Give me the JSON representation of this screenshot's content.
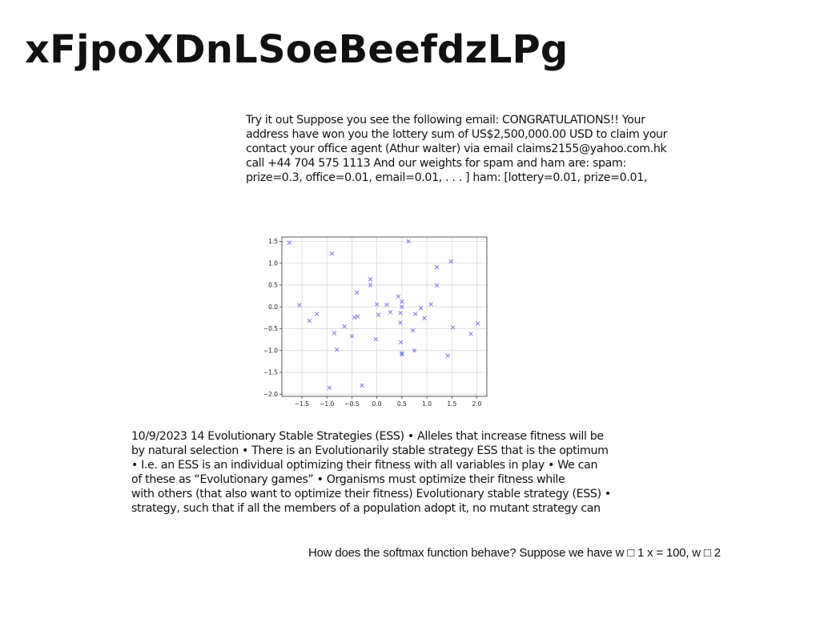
{
  "title": "xFjpoXDnLSoeBeefdzLPg",
  "spam_paragraph": {
    "lines": [
      "Try it out Suppose you see the following email: CONGRATULATIONS!! Your",
      "address have won you the lottery sum of US$2,500,000.00 USD to claim your",
      "contact your office agent (Athur walter) via email claims2155@yahoo.com.hk",
      "call +44 704 575 1113 And our weights for spam and ham are: spam:",
      "prize=0.3, office=0.01, email=0.01, . . . ] ham: [lottery=0.01, prize=0.01,"
    ]
  },
  "ess_paragraph": {
    "lines": [
      "10/9/2023 14 Evolutionary Stable Strategies (ESS) • Alleles that increase fitness will be",
      "by natural selection • There is an Evolutionarily stable strategy ESS that is the optimum",
      "• I.e. an ESS is an individual optimizing their fitness with all variables in play • We can",
      "of these as “Evolutionary games” • Organisms must optimize their fitness while",
      "with others (that also want to optimize their fitness) Evolutionary stable strategy (ESS) •",
      "strategy, such that if all the members of a population adopt it, no mutant strategy can"
    ]
  },
  "softmax_line": "How does the softmax function behave? Suppose we have w □ 1 x = 100, w □ 2",
  "chart_data": {
    "type": "scatter",
    "marker": "x",
    "color": "#7b7bdc",
    "grid": true,
    "xlim": [
      -1.9,
      2.2
    ],
    "ylim": [
      -2.05,
      1.6
    ],
    "xticks": [
      "−1.5",
      "−1.0",
      "−0.5",
      "0.0",
      "0.5",
      "1.0",
      "1.5",
      "2.0"
    ],
    "xtick_values": [
      -1.5,
      -1.0,
      -0.5,
      0.0,
      0.5,
      1.0,
      1.5,
      2.0
    ],
    "yticks": [
      "1.5",
      "1.0",
      "0.5",
      "0.0",
      "−0.5",
      "−1.0",
      "−1.5",
      "−2.0"
    ],
    "ytick_values": [
      1.5,
      1.0,
      0.5,
      0.0,
      -0.5,
      -1.0,
      -1.5,
      -2.0
    ],
    "points": [
      {
        "x": -1.75,
        "y": 1.47
      },
      {
        "x": -1.55,
        "y": 0.04
      },
      {
        "x": -1.35,
        "y": -0.32
      },
      {
        "x": -1.2,
        "y": -0.16
      },
      {
        "x": -0.95,
        "y": -1.85
      },
      {
        "x": -0.9,
        "y": 1.22
      },
      {
        "x": -0.85,
        "y": -0.6
      },
      {
        "x": -0.8,
        "y": -0.98
      },
      {
        "x": -0.65,
        "y": -0.45
      },
      {
        "x": -0.5,
        "y": -0.67
      },
      {
        "x": -0.45,
        "y": -0.24
      },
      {
        "x": -0.4,
        "y": 0.33
      },
      {
        "x": -0.38,
        "y": -0.22
      },
      {
        "x": -0.3,
        "y": -1.8
      },
      {
        "x": -0.13,
        "y": 0.63
      },
      {
        "x": -0.13,
        "y": 0.5
      },
      {
        "x": 0.0,
        "y": 0.06
      },
      {
        "x": -0.02,
        "y": -0.74
      },
      {
        "x": 0.03,
        "y": -0.18
      },
      {
        "x": 0.2,
        "y": 0.05
      },
      {
        "x": 0.27,
        "y": -0.12
      },
      {
        "x": 0.43,
        "y": 0.24
      },
      {
        "x": 0.47,
        "y": -0.36
      },
      {
        "x": 0.47,
        "y": -0.14
      },
      {
        "x": 0.5,
        "y": 0.12
      },
      {
        "x": 0.5,
        "y": 0.0
      },
      {
        "x": 0.48,
        "y": -0.81
      },
      {
        "x": 0.5,
        "y": -1.06
      },
      {
        "x": 0.5,
        "y": -1.09
      },
      {
        "x": 0.63,
        "y": 1.5
      },
      {
        "x": 0.72,
        "y": -0.54
      },
      {
        "x": 0.77,
        "y": -0.16
      },
      {
        "x": 0.75,
        "y": -1.0
      },
      {
        "x": 0.88,
        "y": -0.03
      },
      {
        "x": 0.95,
        "y": -0.26
      },
      {
        "x": 1.08,
        "y": 0.06
      },
      {
        "x": 1.2,
        "y": 0.91
      },
      {
        "x": 1.2,
        "y": 0.49
      },
      {
        "x": 1.42,
        "y": -1.12
      },
      {
        "x": 1.48,
        "y": 1.04
      },
      {
        "x": 1.52,
        "y": -0.47
      },
      {
        "x": 1.88,
        "y": -0.62
      },
      {
        "x": 2.02,
        "y": -0.38
      }
    ]
  }
}
